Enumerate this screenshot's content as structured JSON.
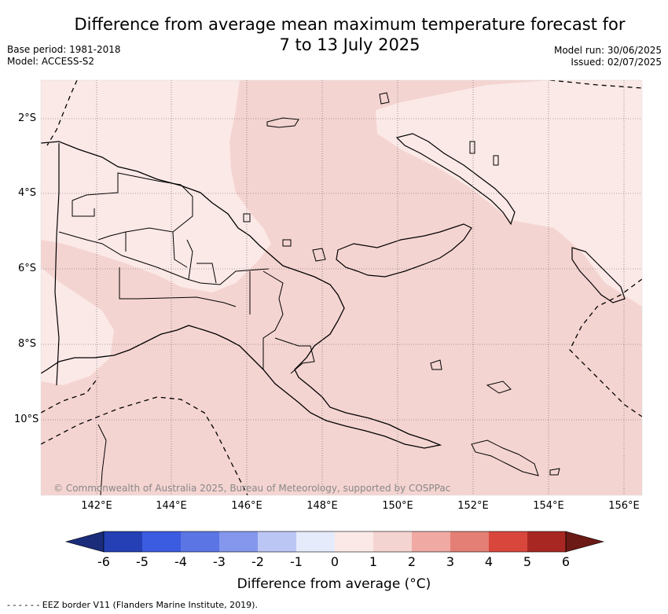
{
  "title_line1": "Difference from average mean maximum temperature forecast for",
  "title_line2": "7 to 13 July 2025",
  "base_period": "Base period: 1981-2018",
  "model": "Model: ACCESS-S2",
  "model_run": "Model run: 30/06/2025",
  "issued": "Issued: 02/07/2025",
  "lat_ticks": [
    "2°S",
    "4°S",
    "6°S",
    "8°S",
    "10°S"
  ],
  "lon_ticks": [
    "142°E",
    "144°E",
    "146°E",
    "148°E",
    "150°E",
    "152°E",
    "154°E",
    "156°E"
  ],
  "copyright": "© Commonwealth of Australia 2025, Bureau of Meteorology, supported by COSPPac",
  "colorbar": {
    "labels": [
      "-6",
      "-5",
      "-4",
      "-3",
      "-2",
      "-1",
      "0",
      "1",
      "2",
      "3",
      "4",
      "5",
      "6"
    ],
    "colors": [
      "#1a2c7a",
      "#2440b4",
      "#3b5be0",
      "#5b75e4",
      "#8497ec",
      "#bcc6f5",
      "#e6ebfb",
      "#fbe9e7",
      "#f4d4d1",
      "#f0aaa3",
      "#e47f76",
      "#d9473c",
      "#a82722",
      "#6b1a16"
    ],
    "title": "Difference from average (°C)"
  },
  "map_colors": {
    "light_warm": "#fbe9e7",
    "warm": "#f4d4d1"
  },
  "footnote": "- -  - -  - - EEZ border V11 (Flanders Marine Institute, 2019)."
}
